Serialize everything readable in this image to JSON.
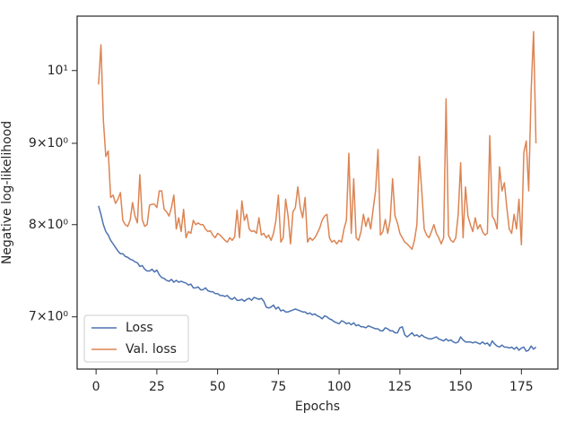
{
  "chart_data": {
    "type": "line",
    "xlabel": "Epochs",
    "ylabel": "Negative log-likelihood",
    "x": [
      1,
      2,
      3,
      4,
      5,
      6,
      7,
      8,
      9,
      10,
      11,
      12,
      13,
      14,
      15,
      16,
      17,
      18,
      19,
      20,
      21,
      22,
      23,
      24,
      25,
      26,
      27,
      28,
      29,
      30,
      31,
      32,
      33,
      34,
      35,
      36,
      37,
      38,
      39,
      40,
      41,
      42,
      43,
      44,
      45,
      46,
      47,
      48,
      49,
      50,
      51,
      52,
      53,
      54,
      55,
      56,
      57,
      58,
      59,
      60,
      61,
      62,
      63,
      64,
      65,
      66,
      67,
      68,
      69,
      70,
      71,
      72,
      73,
      74,
      75,
      76,
      77,
      78,
      79,
      80,
      81,
      82,
      83,
      84,
      85,
      86,
      87,
      88,
      89,
      90,
      91,
      92,
      93,
      94,
      95,
      96,
      97,
      98,
      99,
      100,
      101,
      102,
      103,
      104,
      105,
      106,
      107,
      108,
      109,
      110,
      111,
      112,
      113,
      114,
      115,
      116,
      117,
      118,
      119,
      120,
      121,
      122,
      123,
      124,
      125,
      126,
      127,
      128,
      129,
      130,
      131,
      132,
      133,
      134,
      135,
      136,
      137,
      138,
      139,
      140,
      141,
      142,
      143,
      144,
      145,
      146,
      147,
      148,
      149,
      150,
      151,
      152,
      153,
      154,
      155,
      156,
      157,
      158,
      159,
      160,
      161,
      162,
      163,
      164,
      165,
      166,
      167,
      168,
      169,
      170,
      171,
      172,
      173,
      174,
      175,
      176,
      177,
      178,
      179,
      180,
      181
    ],
    "series": [
      {
        "name": "Loss",
        "color": "#4c72b0",
        "values": [
          8.22,
          8.12,
          8.0,
          7.92,
          7.88,
          7.82,
          7.78,
          7.74,
          7.7,
          7.67,
          7.67,
          7.64,
          7.63,
          7.61,
          7.6,
          7.58,
          7.57,
          7.53,
          7.54,
          7.5,
          7.48,
          7.48,
          7.5,
          7.47,
          7.49,
          7.44,
          7.41,
          7.4,
          7.38,
          7.37,
          7.39,
          7.36,
          7.38,
          7.36,
          7.37,
          7.36,
          7.35,
          7.33,
          7.34,
          7.3,
          7.3,
          7.31,
          7.28,
          7.28,
          7.3,
          7.27,
          7.26,
          7.26,
          7.24,
          7.24,
          7.22,
          7.22,
          7.21,
          7.22,
          7.19,
          7.18,
          7.2,
          7.17,
          7.17,
          7.18,
          7.16,
          7.18,
          7.19,
          7.17,
          7.2,
          7.19,
          7.18,
          7.19,
          7.16,
          7.1,
          7.09,
          7.1,
          7.12,
          7.08,
          7.1,
          7.06,
          7.07,
          7.05,
          7.05,
          7.06,
          7.07,
          7.08,
          7.07,
          7.06,
          7.05,
          7.05,
          7.03,
          7.04,
          7.02,
          7.03,
          7.01,
          7.0,
          6.98,
          7.01,
          7.0,
          6.98,
          6.97,
          6.95,
          6.94,
          6.93,
          6.96,
          6.95,
          6.93,
          6.94,
          6.92,
          6.94,
          6.91,
          6.92,
          6.9,
          6.9,
          6.89,
          6.91,
          6.9,
          6.89,
          6.88,
          6.88,
          6.86,
          6.86,
          6.89,
          6.88,
          6.86,
          6.86,
          6.84,
          6.84,
          6.89,
          6.9,
          6.82,
          6.8,
          6.82,
          6.84,
          6.81,
          6.82,
          6.8,
          6.82,
          6.8,
          6.79,
          6.78,
          6.78,
          6.79,
          6.8,
          6.78,
          6.77,
          6.76,
          6.78,
          6.76,
          6.77,
          6.75,
          6.74,
          6.75,
          6.8,
          6.77,
          6.75,
          6.75,
          6.75,
          6.74,
          6.75,
          6.74,
          6.73,
          6.75,
          6.73,
          6.74,
          6.71,
          6.76,
          6.73,
          6.71,
          6.7,
          6.72,
          6.7,
          6.7,
          6.69,
          6.7,
          6.68,
          6.7,
          6.67,
          6.69,
          6.7,
          6.66,
          6.67,
          6.71,
          6.68,
          6.7
        ]
      },
      {
        "name": "Val. loss",
        "color": "#dd8452",
        "values": [
          9.8,
          10.38,
          9.3,
          8.83,
          8.9,
          8.32,
          8.35,
          8.25,
          8.3,
          8.38,
          8.05,
          8.0,
          7.98,
          8.05,
          8.26,
          8.1,
          8.02,
          8.6,
          8.06,
          7.98,
          8.0,
          8.23,
          8.24,
          8.24,
          8.2,
          8.4,
          8.4,
          8.18,
          8.15,
          8.1,
          8.2,
          8.35,
          7.95,
          8.08,
          7.92,
          8.18,
          7.85,
          7.92,
          7.9,
          8.05,
          8.0,
          8.02,
          8.0,
          8.0,
          7.95,
          7.92,
          7.93,
          7.88,
          7.85,
          7.9,
          7.88,
          7.85,
          7.82,
          7.8,
          7.85,
          7.82,
          7.86,
          8.17,
          7.85,
          8.28,
          8.05,
          8.12,
          7.95,
          7.92,
          7.93,
          7.9,
          8.08,
          7.88,
          7.9,
          7.85,
          7.88,
          7.82,
          7.9,
          8.05,
          8.35,
          7.8,
          7.85,
          8.3,
          8.1,
          7.78,
          8.15,
          8.2,
          8.45,
          8.2,
          8.08,
          8.32,
          7.8,
          7.85,
          7.82,
          7.85,
          7.9,
          7.96,
          8.05,
          8.1,
          8.12,
          7.85,
          7.8,
          7.82,
          7.78,
          7.82,
          7.8,
          7.95,
          8.05,
          8.87,
          7.9,
          8.55,
          7.85,
          7.82,
          7.92,
          8.12,
          7.98,
          8.08,
          7.95,
          8.18,
          8.4,
          8.92,
          7.88,
          7.92,
          8.06,
          7.9,
          8.05,
          8.55,
          8.1,
          8.02,
          7.9,
          7.85,
          7.8,
          7.78,
          7.75,
          7.72,
          7.82,
          8.0,
          8.83,
          8.4,
          7.95,
          7.88,
          7.85,
          7.92,
          8.0,
          7.9,
          7.85,
          7.78,
          7.85,
          9.6,
          7.88,
          7.82,
          7.8,
          7.85,
          8.12,
          8.75,
          7.85,
          8.45,
          8.1,
          8.0,
          7.92,
          8.08,
          7.95,
          8.0,
          7.92,
          7.88,
          7.9,
          9.1,
          8.1,
          8.05,
          7.95,
          8.7,
          8.4,
          8.5,
          8.2,
          7.95,
          7.9,
          8.12,
          7.95,
          8.3,
          7.77,
          8.88,
          9.03,
          8.4,
          9.7,
          10.58,
          9.0
        ]
      }
    ],
    "xlim": [
      -7.8,
      190
    ],
    "xticks": [
      0,
      25,
      50,
      75,
      100,
      125,
      150,
      175
    ],
    "ylim": [
      6.49,
      10.82
    ],
    "log_y": true,
    "yticks": [
      {
        "value": 7,
        "label": "7×10⁰"
      },
      {
        "value": 8,
        "label": "8×10⁰"
      },
      {
        "value": 9,
        "label": "9×10⁰"
      },
      {
        "value": 10,
        "label": "10¹"
      }
    ],
    "legend": "lower left"
  }
}
